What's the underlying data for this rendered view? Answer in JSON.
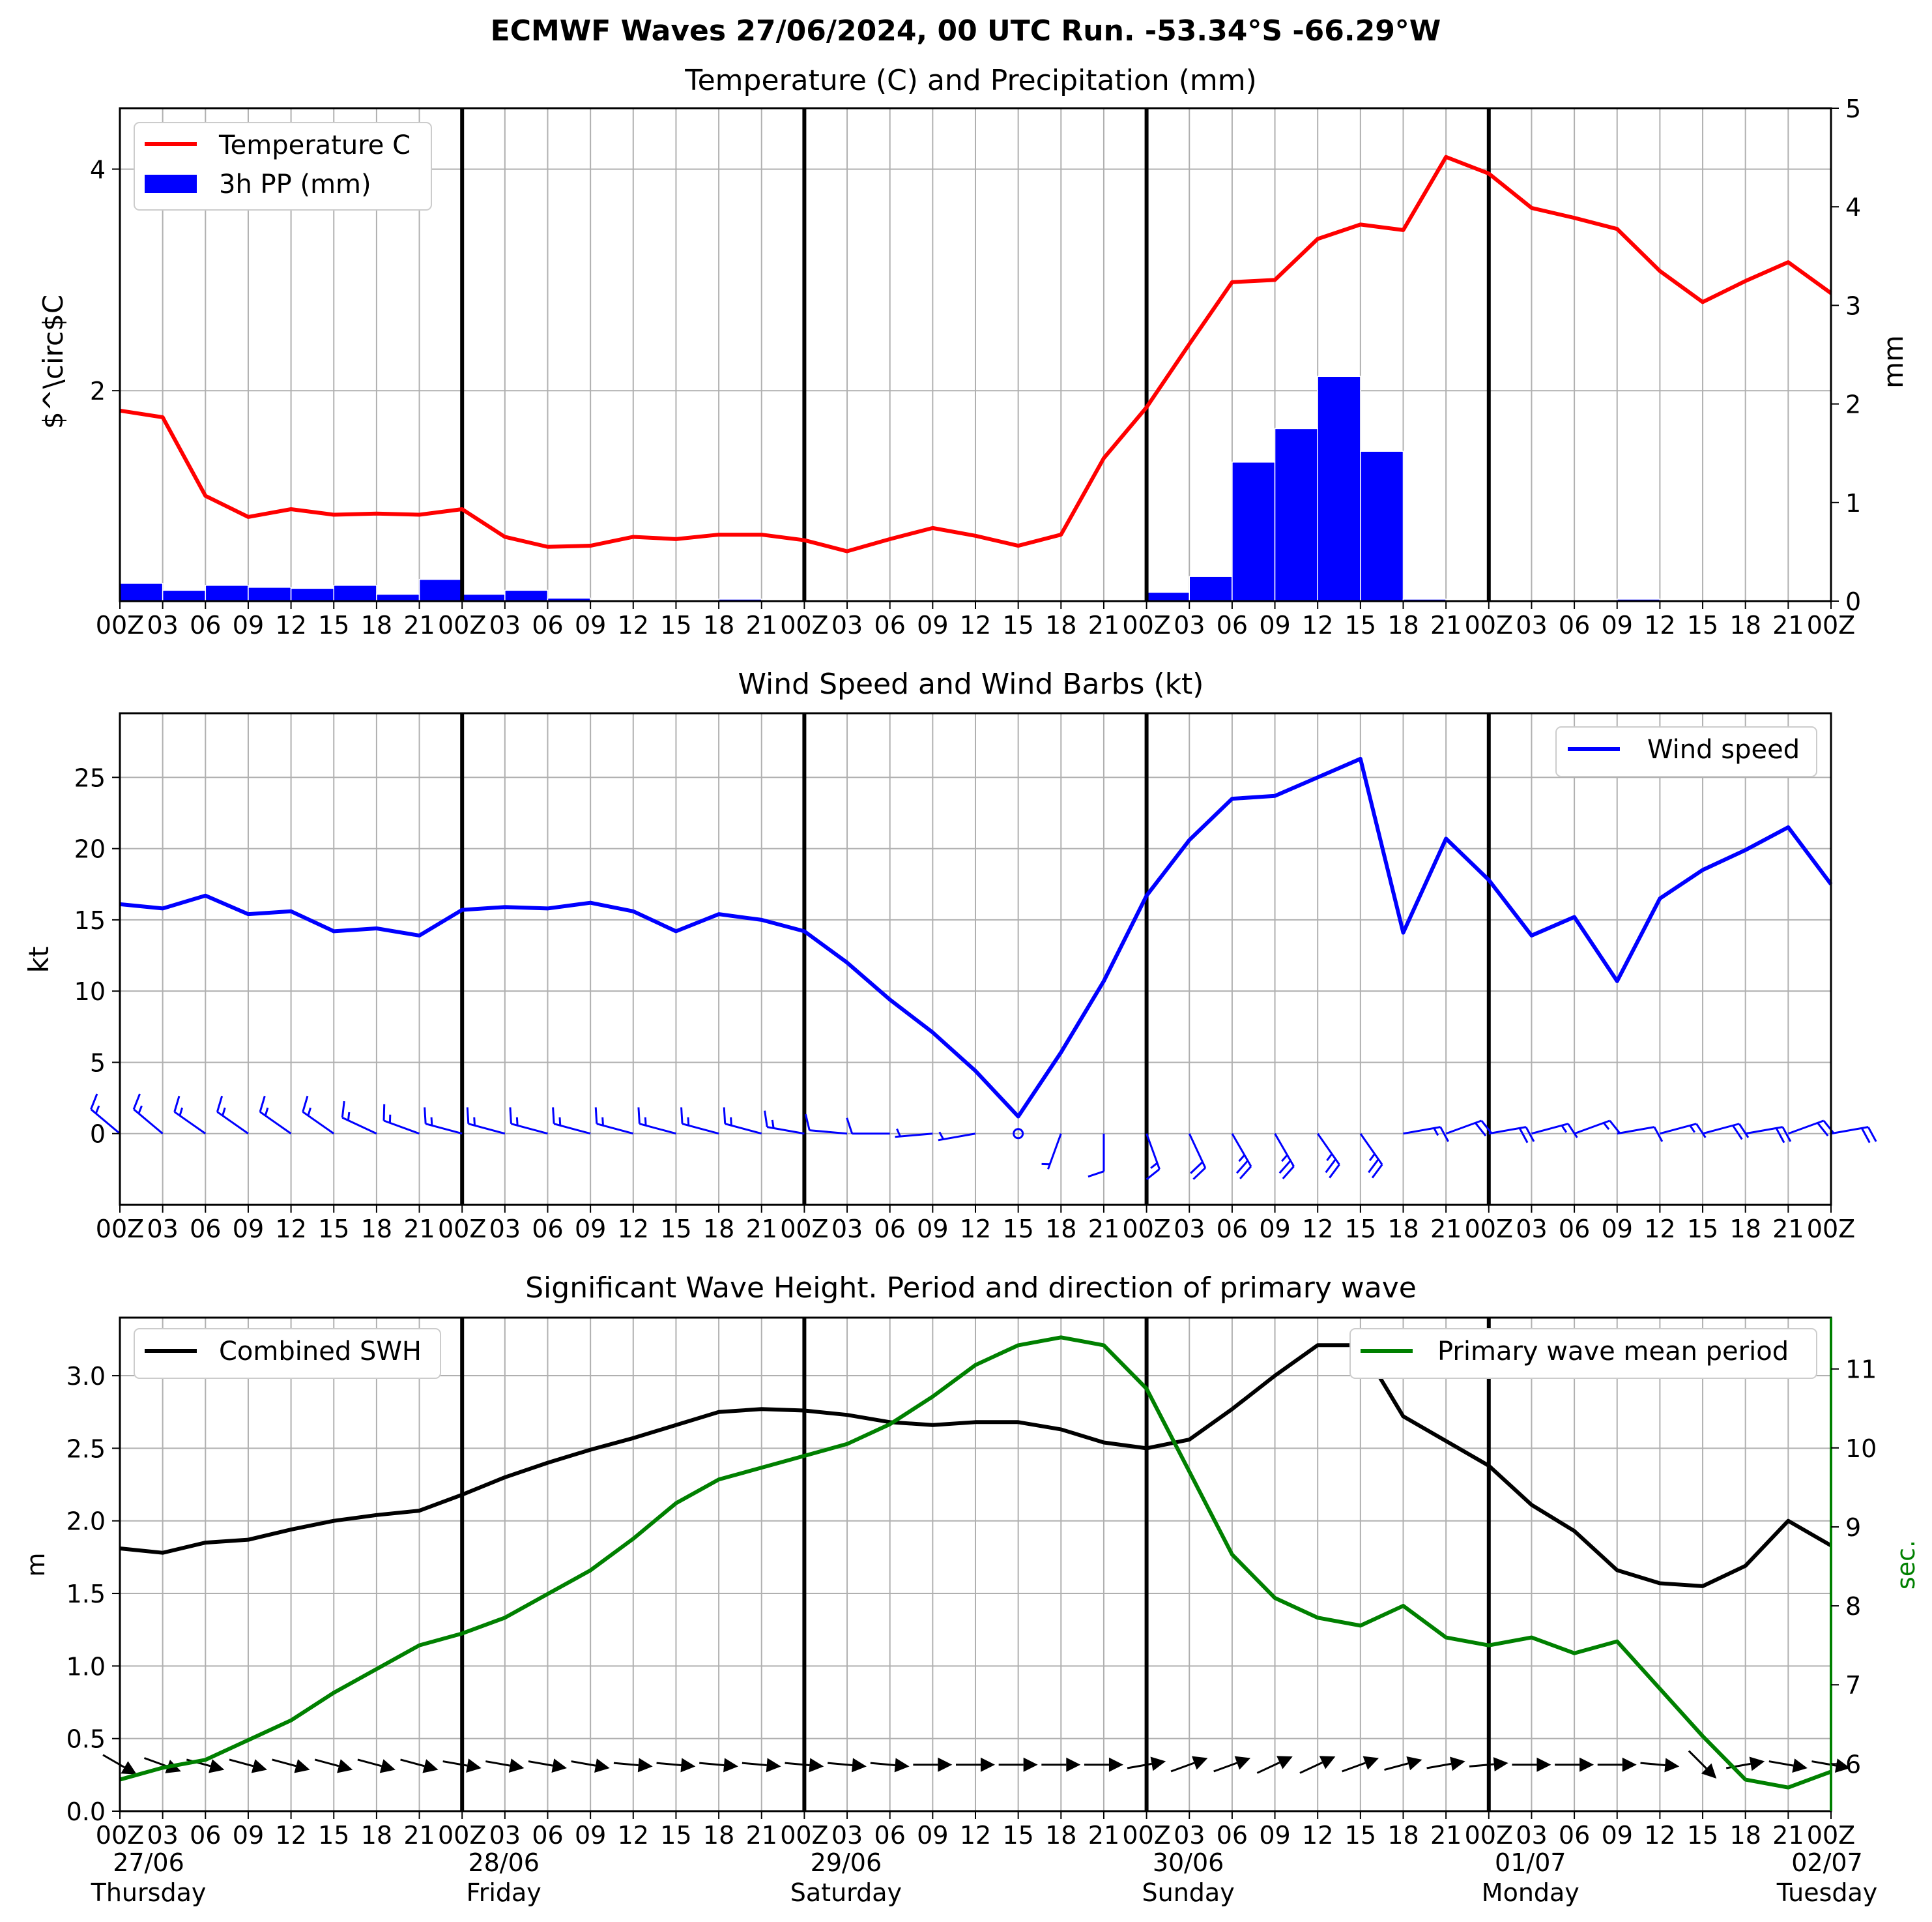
{
  "suptitle": "ECMWF Waves 27/06/2024, 00 UTC Run. -53.34°S -66.29°W",
  "hour_ticks_panel": [
    "00Z",
    "03",
    "06",
    "09",
    "12",
    "15",
    "18",
    "21",
    "00Z",
    "03",
    "06",
    "09",
    "12",
    "15",
    "18",
    "21",
    "00Z",
    "03",
    "06",
    "09",
    "12",
    "15",
    "18",
    "21",
    "00Z",
    "03",
    "06",
    "09",
    "12",
    "15",
    "18",
    "21",
    "00Z",
    "03",
    "06",
    "09",
    "12",
    "15",
    "18",
    "21",
    "00Z"
  ],
  "hour_ticks_bottom": [
    "00Z",
    "03",
    "06",
    "09",
    "12",
    "15",
    "18",
    "21",
    "00Z",
    "03",
    "06",
    "09",
    "12",
    "15",
    "18",
    "21",
    "00Z",
    "03",
    "06",
    "09",
    "12",
    "15",
    "18",
    "21",
    "00Z",
    "03",
    "06",
    "09",
    "12",
    "15",
    "18",
    "21",
    "00Z",
    "03",
    "06",
    "09",
    "12",
    "15",
    "18",
    "21",
    "00Z"
  ],
  "day_labels": [
    {
      "date": "27/06",
      "day": "Thursday"
    },
    {
      "date": "28/06",
      "day": "Friday"
    },
    {
      "date": "29/06",
      "day": "Saturday"
    },
    {
      "date": "30/06",
      "day": "Sunday"
    },
    {
      "date": "01/07",
      "day": "Monday"
    },
    {
      "date": "02/07",
      "day": "Tuesday"
    }
  ],
  "colors": {
    "temperature": "#ff0000",
    "precip": "#0000ff",
    "wind": "#0000ff",
    "swh": "#000000",
    "period": "#008000",
    "grid": "#b0b0b0"
  },
  "chart_data": [
    {
      "type": "line",
      "title": "Temperature (C) and Precipitation (mm)",
      "x_hours": [
        0,
        3,
        6,
        9,
        12,
        15,
        18,
        21,
        24,
        27,
        30,
        33,
        36,
        39,
        42,
        45,
        48,
        51,
        54,
        57,
        60,
        63,
        66,
        69,
        72,
        75,
        78,
        81,
        84,
        87,
        90,
        93,
        96,
        99,
        102,
        105,
        108,
        111,
        114,
        117,
        120
      ],
      "ylabel_left": "$^\\circ$C",
      "ylabel_right": "mm",
      "ylim_left": [
        0.1,
        4.55
      ],
      "ylim_right": [
        0,
        5
      ],
      "yticks_left": [
        2,
        4
      ],
      "yticks_right": [
        0,
        1,
        2,
        3,
        4,
        5
      ],
      "grid": true,
      "legend": {
        "position": "top-left",
        "entries": [
          "Temperature C",
          "3h PP (mm)"
        ]
      },
      "series": [
        {
          "name": "Temperature C",
          "kind": "line",
          "axis": "left",
          "values": [
            1.82,
            1.76,
            1.05,
            0.86,
            0.93,
            0.88,
            0.89,
            0.88,
            0.93,
            0.68,
            0.59,
            0.6,
            0.68,
            0.66,
            0.7,
            0.7,
            0.65,
            0.55,
            0.66,
            0.76,
            0.69,
            0.6,
            0.7,
            1.39,
            1.85,
            2.42,
            2.98,
            3.0,
            3.37,
            3.5,
            3.45,
            4.11,
            3.96,
            3.65,
            3.56,
            3.46,
            3.08,
            2.8,
            2.99,
            3.16,
            2.88
          ]
        },
        {
          "name": "3h PP (mm)",
          "kind": "bar",
          "axis": "right",
          "values": [
            0.18,
            0.11,
            0.16,
            0.14,
            0.13,
            0.16,
            0.07,
            0.22,
            0.07,
            0.11,
            0.03,
            0.01,
            0.01,
            0.0,
            0.02,
            0.0,
            0.01,
            0.01,
            0.0,
            0.0,
            0.0,
            0.0,
            0.0,
            0.0,
            0.09,
            0.25,
            1.41,
            1.75,
            2.28,
            1.52,
            0.02,
            0.01,
            0.0,
            0.0,
            0.0,
            0.02,
            0.0,
            0.0,
            0.0,
            0.0
          ]
        }
      ]
    },
    {
      "type": "line",
      "title": "Wind Speed and Wind Barbs (kt)",
      "x_hours": [
        0,
        3,
        6,
        9,
        12,
        15,
        18,
        21,
        24,
        27,
        30,
        33,
        36,
        39,
        42,
        45,
        48,
        51,
        54,
        57,
        60,
        63,
        66,
        69,
        72,
        75,
        78,
        81,
        84,
        87,
        90,
        93,
        96,
        99,
        102,
        105,
        108,
        111,
        114,
        117,
        120
      ],
      "ylabel": "kt",
      "ylim": [
        -5,
        29.5
      ],
      "yticks": [
        0,
        5,
        10,
        15,
        20,
        25
      ],
      "grid": true,
      "legend": {
        "position": "top-right",
        "entries": [
          "Wind speed"
        ]
      },
      "series": [
        {
          "name": "Wind speed",
          "kind": "line",
          "values": [
            16.1,
            15.8,
            16.7,
            15.4,
            15.6,
            14.2,
            14.4,
            13.9,
            15.7,
            15.9,
            15.8,
            16.2,
            15.6,
            14.2,
            15.4,
            15.0,
            14.2,
            12.0,
            9.4,
            7.1,
            4.4,
            1.2,
            5.7,
            10.7,
            16.7,
            20.6,
            23.5,
            23.7,
            25.0,
            26.3,
            14.1,
            20.7,
            17.8,
            13.9,
            15.2,
            10.7,
            16.5,
            18.5,
            19.9,
            21.5,
            17.5
          ]
        }
      ],
      "barbs": {
        "direction_from_deg": [
          310,
          310,
          305,
          305,
          305,
          305,
          295,
          290,
          285,
          285,
          285,
          285,
          285,
          285,
          285,
          285,
          280,
          275,
          270,
          265,
          260,
          null,
          200,
          180,
          160,
          155,
          150,
          150,
          145,
          145,
          80,
          70,
          80,
          75,
          70,
          80,
          75,
          75,
          80,
          70,
          80
        ]
      }
    },
    {
      "type": "line",
      "title": "Significant Wave Height. Period and direction of primary wave",
      "x_hours": [
        0,
        3,
        6,
        9,
        12,
        15,
        18,
        21,
        24,
        27,
        30,
        33,
        36,
        39,
        42,
        45,
        48,
        51,
        54,
        57,
        60,
        63,
        66,
        69,
        72,
        75,
        78,
        81,
        84,
        87,
        90,
        93,
        96,
        99,
        102,
        105,
        108,
        111,
        114,
        117,
        120
      ],
      "ylabel_left": "m",
      "ylabel_right": "sec.",
      "ylim_left": [
        0,
        3.4
      ],
      "ylim_right": [
        5.4,
        11.65
      ],
      "yticks_left": [
        0.0,
        0.5,
        1.0,
        1.5,
        2.0,
        2.5,
        3.0
      ],
      "yticks_right": [
        6,
        7,
        8,
        9,
        10,
        11
      ],
      "grid": true,
      "legend_left": {
        "position": "top-left",
        "entries": [
          "Combined SWH"
        ]
      },
      "legend_right": {
        "position": "top-right",
        "entries": [
          "Primary wave mean period"
        ]
      },
      "series": [
        {
          "name": "Combined SWH",
          "kind": "line",
          "axis": "left",
          "values": [
            1.81,
            1.78,
            1.85,
            1.87,
            1.94,
            2.0,
            2.04,
            2.07,
            2.18,
            2.3,
            2.4,
            2.49,
            2.57,
            2.66,
            2.75,
            2.77,
            2.76,
            2.73,
            2.68,
            2.66,
            2.68,
            2.68,
            2.63,
            2.54,
            2.5,
            2.56,
            2.77,
            3.0,
            3.21,
            3.21,
            2.72,
            2.55,
            2.38,
            2.11,
            1.93,
            1.66,
            1.57,
            1.55,
            1.69,
            2.0,
            1.83
          ]
        },
        {
          "name": "Primary wave mean period",
          "kind": "line",
          "axis": "right",
          "values": [
            5.8,
            5.95,
            6.05,
            6.3,
            6.55,
            6.9,
            7.2,
            7.5,
            7.65,
            7.85,
            8.15,
            8.45,
            8.85,
            9.3,
            9.6,
            9.75,
            9.9,
            10.05,
            10.3,
            10.65,
            11.05,
            11.3,
            11.4,
            11.3,
            10.75,
            9.7,
            8.65,
            8.1,
            7.85,
            7.75,
            8.0,
            7.6,
            7.5,
            7.6,
            7.4,
            7.55,
            6.95,
            6.35,
            5.8,
            5.7,
            5.9
          ]
        }
      ],
      "wave_direction_from_deg": [
        300,
        290,
        285,
        285,
        285,
        285,
        285,
        285,
        280,
        280,
        280,
        280,
        275,
        275,
        275,
        275,
        275,
        275,
        275,
        270,
        270,
        270,
        270,
        270,
        260,
        250,
        250,
        245,
        245,
        250,
        255,
        260,
        265,
        270,
        270,
        270,
        275,
        315,
        260,
        280,
        280
      ]
    }
  ]
}
